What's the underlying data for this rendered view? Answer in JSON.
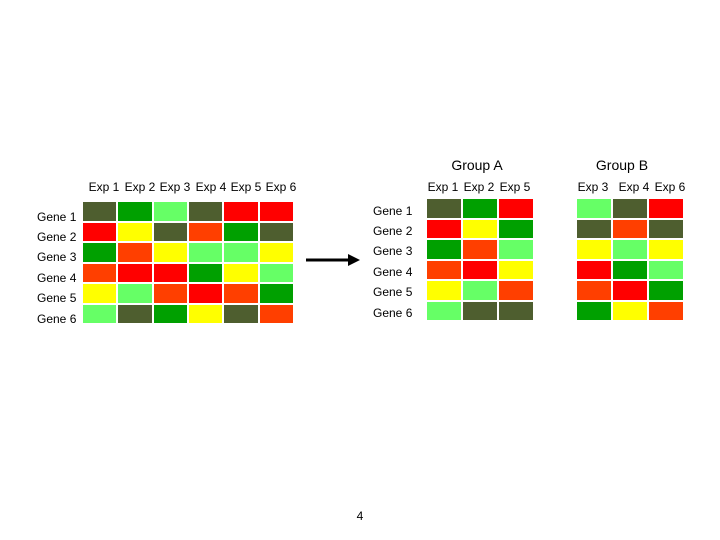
{
  "colors": {
    "dg": "#4e5e2f",
    "g": "#00a000",
    "lg": "#66ff66",
    "r": "#ff0000",
    "or": "#ff3f00",
    "y": "#ffff00"
  },
  "left": {
    "columns": [
      "Exp 1",
      "Exp 2",
      "Exp 3",
      "Exp 4",
      "Exp 5",
      "Exp 6"
    ],
    "rows": [
      "Gene 1",
      "Gene 2",
      "Gene 3",
      "Gene 4",
      "Gene 5",
      "Gene 6"
    ],
    "cells": [
      [
        "dg",
        "g",
        "lg",
        "dg",
        "r",
        "r"
      ],
      [
        "r",
        "y",
        "dg",
        "or",
        "g",
        "dg"
      ],
      [
        "g",
        "or",
        "y",
        "lg",
        "lg",
        "y"
      ],
      [
        "or",
        "r",
        "r",
        "g",
        "y",
        "lg"
      ],
      [
        "y",
        "lg",
        "or",
        "r",
        "or",
        "g"
      ],
      [
        "lg",
        "dg",
        "g",
        "y",
        "dg",
        "or"
      ]
    ]
  },
  "group_a": {
    "title": "Group A",
    "columns": [
      "Exp 1",
      "Exp 2",
      "Exp 5"
    ],
    "rows": [
      "Gene 1",
      "Gene 2",
      "Gene 3",
      "Gene 4",
      "Gene 5",
      "Gene 6"
    ],
    "cells": [
      [
        "dg",
        "g",
        "r"
      ],
      [
        "r",
        "y",
        "g"
      ],
      [
        "g",
        "or",
        "lg"
      ],
      [
        "or",
        "r",
        "y"
      ],
      [
        "y",
        "lg",
        "or"
      ],
      [
        "lg",
        "dg",
        "dg"
      ]
    ]
  },
  "group_b": {
    "title": "Group B",
    "columns": [
      "Exp 3",
      "Exp 4",
      "Exp 6"
    ],
    "cells": [
      [
        "lg",
        "dg",
        "r"
      ],
      [
        "dg",
        "or",
        "dg"
      ],
      [
        "y",
        "lg",
        "y"
      ],
      [
        "r",
        "g",
        "lg"
      ],
      [
        "or",
        "r",
        "g"
      ],
      [
        "g",
        "y",
        "or"
      ]
    ]
  },
  "page_number": "4"
}
